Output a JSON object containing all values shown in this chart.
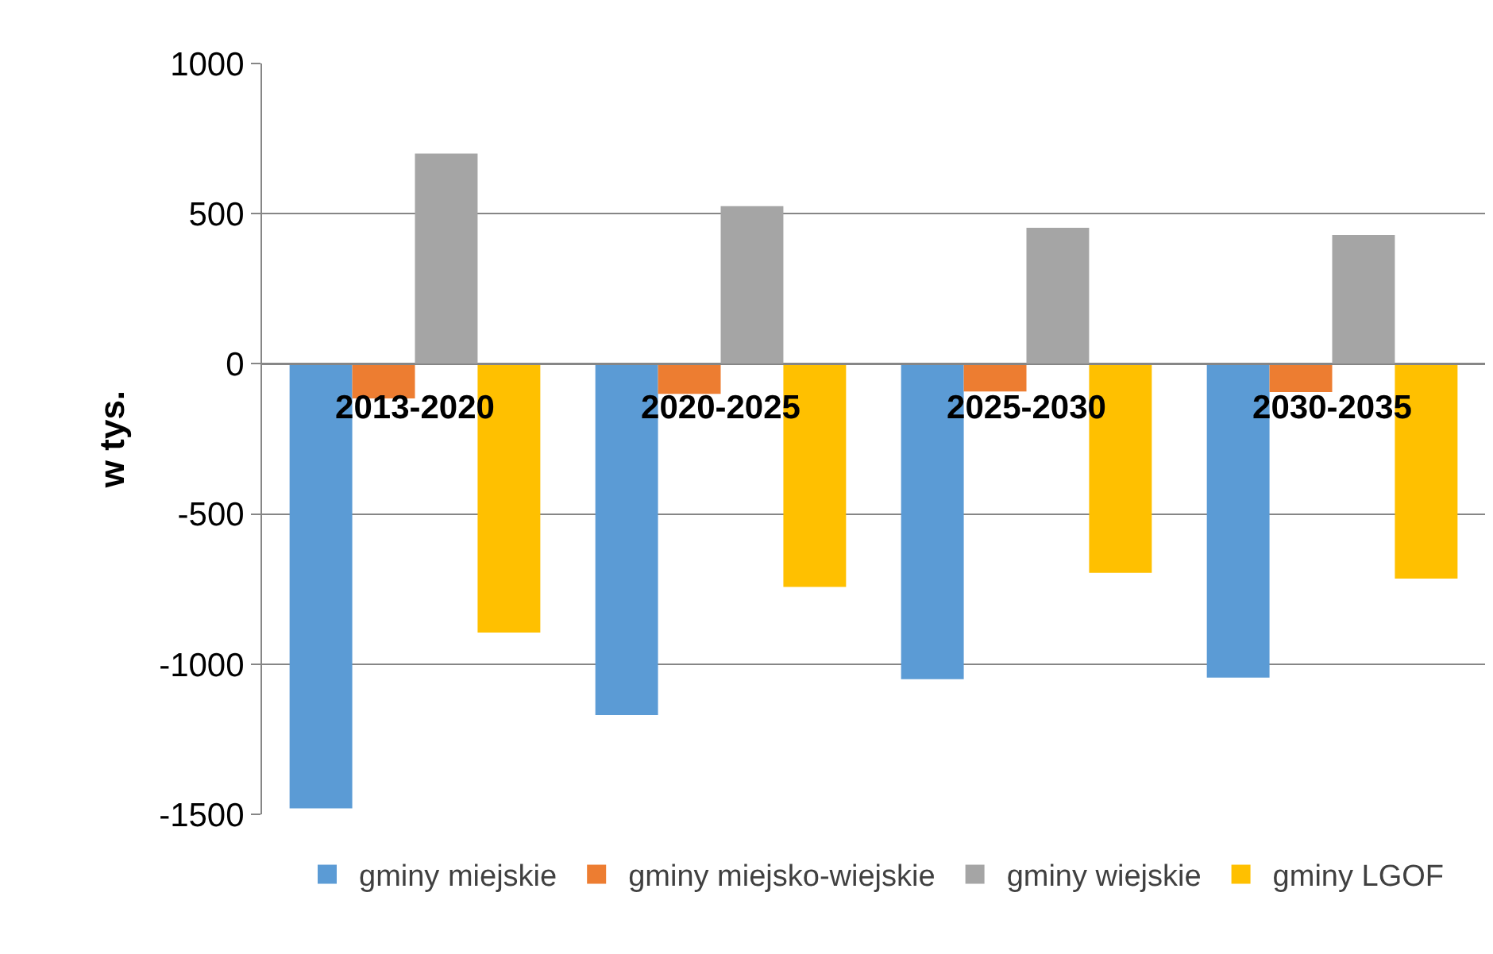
{
  "chart_data": {
    "type": "bar",
    "ylabel": "w tys.",
    "categories": [
      "2013-2020",
      "2020-2025",
      "2025-2030",
      "2030-2035"
    ],
    "series": [
      {
        "name": "gminy miejskie",
        "color": "#5b9bd5",
        "values": [
          -1480,
          -1170,
          -1050,
          -1045
        ]
      },
      {
        "name": "gminy miejsko-wiejskie",
        "color": "#ed7d31",
        "values": [
          -115,
          -100,
          -92,
          -94
        ]
      },
      {
        "name": "gminy wiejskie",
        "color": "#a5a5a5",
        "values": [
          700,
          525,
          453,
          429
        ]
      },
      {
        "name": "gminy LGOF",
        "color": "#ffc000",
        "values": [
          -895,
          -743,
          -696,
          -715
        ]
      }
    ],
    "ylim": [
      -1500,
      1000
    ],
    "yticks": [
      -1500,
      -1000,
      -500,
      0,
      500,
      1000
    ],
    "grid": "y",
    "legend": "bottom"
  }
}
